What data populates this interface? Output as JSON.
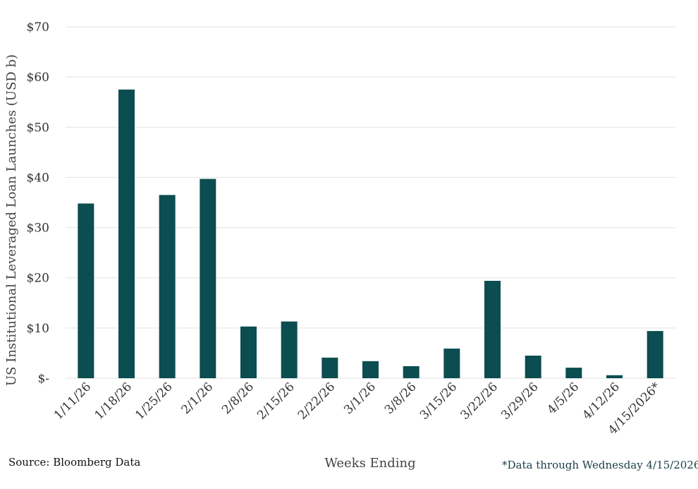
{
  "chart_data": {
    "type": "bar",
    "xlabel": "Weeks Ending",
    "ylabel": "US Institutional Leveraged Loan Launches (USD b)",
    "categories": [
      "1/11/26",
      "1/18/26",
      "1/25/26",
      "2/1/26",
      "2/8/26",
      "2/15/26",
      "2/22/26",
      "3/1/26",
      "3/8/26",
      "3/15/26",
      "3/22/26",
      "3/29/26",
      "4/5/26",
      "4/12/26",
      "4/15/2026*"
    ],
    "values": [
      34.8,
      57.5,
      36.5,
      39.7,
      10.3,
      11.3,
      4.1,
      3.4,
      2.4,
      5.9,
      19.4,
      4.5,
      2.1,
      0.6,
      9.4
    ],
    "ylim": [
      0,
      70
    ],
    "yticks": [
      0,
      10,
      20,
      30,
      40,
      50,
      60,
      70
    ],
    "ytick_labels": [
      "$-",
      "$10",
      "$20",
      "$30",
      "$40",
      "$50",
      "$60",
      "$70"
    ],
    "grid": true,
    "bar_color": "#0b4d50",
    "grid_color": "#e2e2e2"
  },
  "notes": {
    "source": "Source: Bloomberg Data",
    "footnote": "*Data through Wednesday 4/15/2026"
  }
}
